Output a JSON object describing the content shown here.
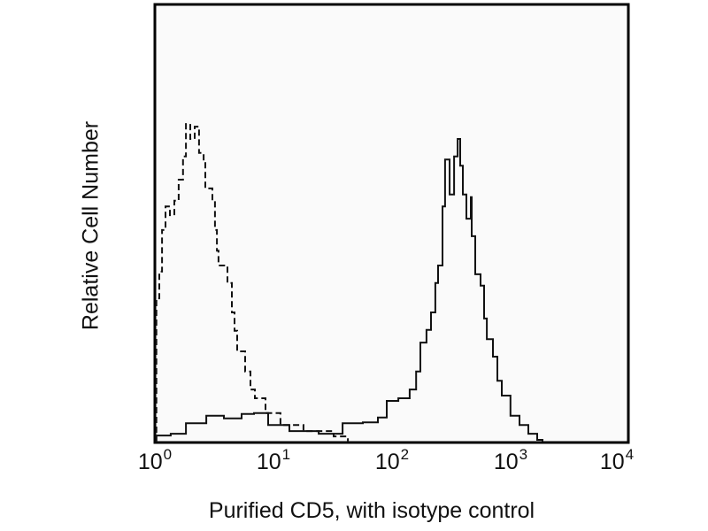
{
  "chart_data": {
    "type": "line",
    "title": "",
    "xlabel": "Purified CD5, with isotype control",
    "ylabel": "Relative Cell Number",
    "xscale": "log",
    "xlim": [
      1,
      10000
    ],
    "ylim": [
      0,
      100
    ],
    "grid": false,
    "x_ticks": [
      {
        "base": "10",
        "exp": "0"
      },
      {
        "base": "10",
        "exp": "1"
      },
      {
        "base": "10",
        "exp": "2"
      },
      {
        "base": "10",
        "exp": "3"
      },
      {
        "base": "10",
        "exp": "4"
      }
    ],
    "series": [
      {
        "style": "dashed",
        "color": "#111111",
        "x": [
          1.03,
          1.09,
          1.15,
          1.23,
          1.34,
          1.46,
          1.59,
          1.73,
          1.83,
          1.99,
          2.17,
          2.36,
          2.58,
          2.67,
          3.06,
          3.22,
          3.34,
          3.45,
          4.1,
          4.47,
          4.71,
          4.96,
          5.79,
          6.42,
          7.0,
          8.6,
          11.5,
          18.0,
          32.4,
          42.7
        ],
        "y": [
          32.9,
          39.0,
          48.5,
          53.9,
          51.9,
          55.2,
          60.0,
          65.3,
          72.7,
          69.3,
          72.1,
          66.1,
          64.6,
          58.0,
          55.2,
          48.5,
          43.8,
          40.4,
          36.4,
          29.7,
          25.5,
          20.8,
          16.2,
          12.1,
          10.1,
          6.7,
          4.0,
          2.6,
          1.4,
          0.4
        ]
      },
      {
        "style": "solid",
        "color": "#111111",
        "x": [
          1.03,
          1.36,
          1.83,
          2.72,
          3.83,
          5.4,
          6.88,
          9.06,
          13.7,
          24.2,
          38.5,
          57.1,
          76.6,
          91.0,
          114,
          142,
          161,
          175,
          197,
          215,
          234,
          247,
          269,
          283,
          309,
          337,
          361,
          380,
          400,
          428,
          467,
          475,
          509,
          564,
          604,
          637,
          718,
          782,
          853,
          1010,
          1203,
          1430,
          1698,
          1884
        ],
        "y": [
          1.6,
          2.0,
          4.4,
          6.1,
          5.5,
          6.5,
          6.7,
          4.0,
          2.6,
          2.0,
          4.4,
          4.6,
          5.7,
          9.5,
          10.1,
          12.1,
          16.2,
          22.8,
          25.7,
          29.7,
          36.4,
          40.4,
          53.9,
          64.6,
          56.6,
          65.3,
          69.3,
          63.2,
          56.6,
          51.1,
          56.0,
          47.1,
          38.4,
          35.8,
          28.3,
          23.6,
          19.6,
          14.1,
          10.7,
          6.1,
          4.0,
          2.0,
          0.6,
          0.2
        ]
      }
    ]
  }
}
